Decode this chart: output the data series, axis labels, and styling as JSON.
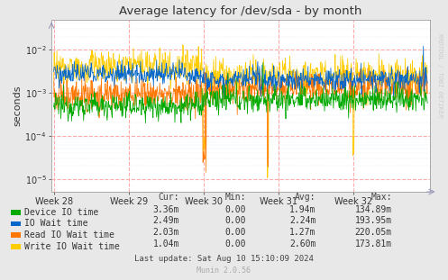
{
  "title": "Average latency for /dev/sda - by month",
  "ylabel": "seconds",
  "bg_color": "#e8e8e8",
  "plot_bg_color": "#ffffff",
  "grid_color_major": "#ffaaaa",
  "grid_color_minor": "#ccddee",
  "x_ticks": [
    0,
    168,
    336,
    504,
    672
  ],
  "x_tick_labels": [
    "Week 28",
    "Week 29",
    "Week 30",
    "Week 31",
    "Week 32"
  ],
  "ylim_min": 5e-06,
  "ylim_max": 0.05,
  "series": {
    "device_io": {
      "label": "Device IO time",
      "color": "#00aa00",
      "lw": 0.55
    },
    "io_wait": {
      "label": "IO Wait time",
      "color": "#0066cc",
      "lw": 0.55
    },
    "read_io": {
      "label": "Read IO Wait time",
      "color": "#ff7700",
      "lw": 0.55
    },
    "write_io": {
      "label": "Write IO Wait time",
      "color": "#ffcc00",
      "lw": 0.55
    }
  },
  "legend_rows": [
    {
      "label": "Device IO time",
      "color": "#00aa00",
      "cur": "3.36m",
      "min": "0.00",
      "avg": "1.94m",
      "max": "134.89m"
    },
    {
      "label": "IO Wait time",
      "color": "#0066cc",
      "cur": "2.49m",
      "min": "0.00",
      "avg": "2.24m",
      "max": "193.95m"
    },
    {
      "label": "Read IO Wait time",
      "color": "#ff7700",
      "cur": "2.03m",
      "min": "0.00",
      "avg": "1.27m",
      "max": "220.05m"
    },
    {
      "label": "Write IO Wait time",
      "color": "#ffcc00",
      "cur": "1.04m",
      "min": "0.00",
      "avg": "2.60m",
      "max": "173.81m"
    }
  ],
  "footer": "Last update: Sat Aug 10 15:10:09 2024",
  "munin_version": "Munin 2.0.56",
  "watermark": "RRDTOOL / TOBI OETIKER",
  "n_points": 840
}
